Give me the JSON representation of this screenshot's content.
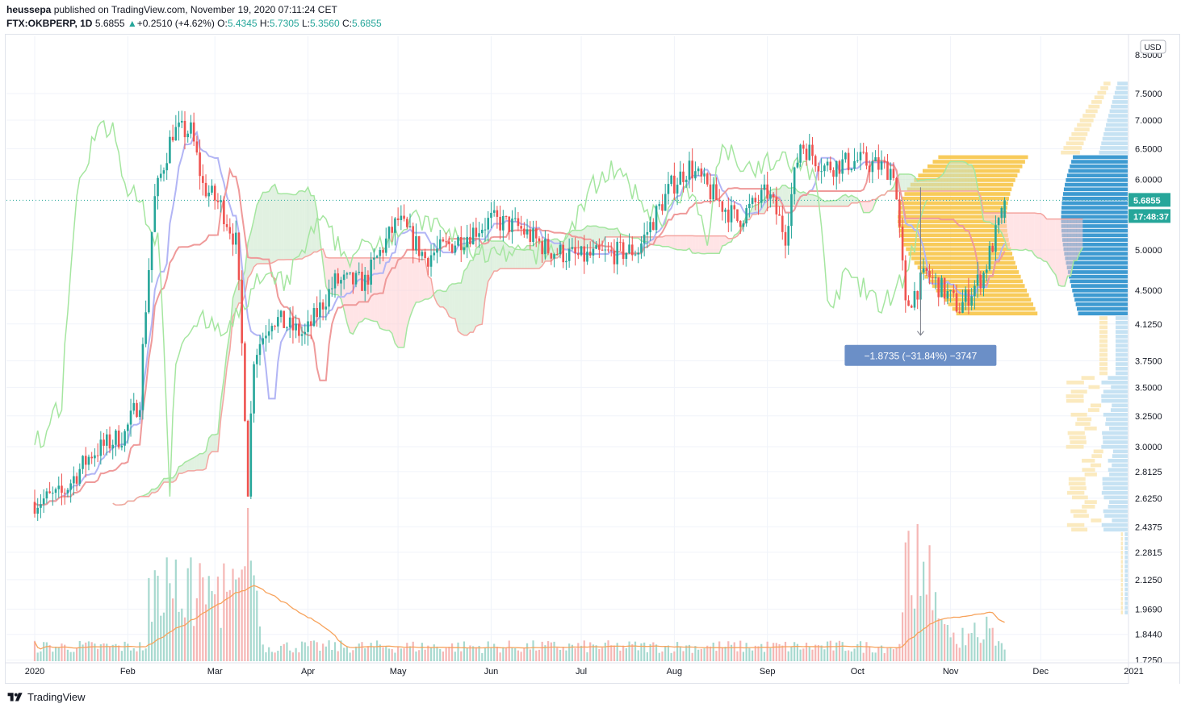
{
  "header": {
    "publisher": "heussepa",
    "published_text": " published on TradingView.com, November 19, 2020 07:11:24 CET",
    "symbol": "FTX:OKBPERP, 1D",
    "last": "5.6855",
    "change_arrow": "▲",
    "change": "+0.2510 (+4.62%)",
    "o_label": "O:",
    "o": "5.4345",
    "h_label": "H:",
    "h": "5.7305",
    "l_label": "L:",
    "l": "5.3560",
    "c_label": "C:",
    "c": "5.6855"
  },
  "footer": {
    "brand": "TradingView"
  },
  "price_axis": {
    "currency": "USD",
    "current_price": "5.6855",
    "countdown": "17:48:37",
    "top_label_partial": "8.5000"
  },
  "measure_label": "−1.8735 (−31.84%) −3747",
  "colors": {
    "up": "#26a69a",
    "down": "#ef5350",
    "tenkan": "#b2b5f5",
    "kijun": "#f4a5a0",
    "chikou": "#a5e6a0",
    "cloud_green": "#c8e6c9",
    "cloud_red": "#ffcdd2",
    "vol_ma": "#f7a35c",
    "vp_blue": "#3d9ad1",
    "vp_yellow": "#f7c548",
    "measure": "#6b8fc7"
  },
  "chart_data": {
    "type": "candlestick",
    "title": "FTX:OKBPERP, 1D",
    "ylabel": "USD",
    "y_scale": "log",
    "ylim": [
      1.72,
      8.7
    ],
    "x_ticks": [
      "2020",
      "Feb",
      "Mar",
      "Apr",
      "May",
      "Jun",
      "Jul",
      "Aug",
      "Sep",
      "Oct",
      "Nov",
      "Dec",
      "2021"
    ],
    "y_ticks": [
      7.5,
      7.0,
      6.5,
      6.0,
      5.0,
      4.5,
      4.125,
      3.75,
      3.5,
      3.25,
      3.0,
      2.8125,
      2.625,
      2.4375,
      2.2815,
      2.125,
      1.969,
      1.844,
      1.725
    ],
    "y_tick_labels": [
      "7.5000",
      "7.0000",
      "6.5000",
      "6.0000",
      "5.0000",
      "4.5000",
      "4.1250",
      "3.7500",
      "3.5000",
      "3.2500",
      "3.0000",
      "2.8125",
      "2.6250",
      "2.4375",
      "2.2815",
      "2.1250",
      "1.9690",
      "1.8440",
      "1.7250"
    ],
    "close_path": [
      [
        "2020-01-01",
        2.6
      ],
      [
        "2020-01-10",
        2.65
      ],
      [
        "2020-01-20",
        2.95
      ],
      [
        "2020-01-31",
        3.1
      ],
      [
        "2020-02-05",
        3.4
      ],
      [
        "2020-02-10",
        5.7
      ],
      [
        "2020-02-16",
        6.8
      ],
      [
        "2020-02-22",
        6.8
      ],
      [
        "2020-02-26",
        5.9
      ],
      [
        "2020-03-03",
        5.6
      ],
      [
        "2020-03-08",
        5.1
      ],
      [
        "2020-03-12",
        2.7
      ],
      [
        "2020-03-14",
        3.8
      ],
      [
        "2020-03-20",
        4.2
      ],
      [
        "2020-03-31",
        4.0
      ],
      [
        "2020-04-10",
        4.6
      ],
      [
        "2020-04-20",
        4.6
      ],
      [
        "2020-05-01",
        5.4
      ],
      [
        "2020-05-10",
        4.9
      ],
      [
        "2020-05-20",
        5.1
      ],
      [
        "2020-06-01",
        5.4
      ],
      [
        "2020-06-10",
        5.3
      ],
      [
        "2020-06-20",
        5.0
      ],
      [
        "2020-07-01",
        4.9
      ],
      [
        "2020-07-20",
        5.0
      ],
      [
        "2020-07-31",
        5.9
      ],
      [
        "2020-08-06",
        6.2
      ],
      [
        "2020-08-15",
        5.7
      ],
      [
        "2020-08-22",
        5.4
      ],
      [
        "2020-09-01",
        5.8
      ],
      [
        "2020-09-07",
        5.2
      ],
      [
        "2020-09-12",
        6.6
      ],
      [
        "2020-09-20",
        6.2
      ],
      [
        "2020-10-01",
        6.3
      ],
      [
        "2020-10-13",
        6.15
      ],
      [
        "2020-10-17",
        4.3
      ],
      [
        "2020-10-24",
        4.7
      ],
      [
        "2020-11-04",
        4.3
      ],
      [
        "2020-11-12",
        4.7
      ],
      [
        "2020-11-18",
        5.45
      ],
      [
        "2020-11-19",
        5.6855
      ]
    ],
    "last_ohlc": {
      "o": 5.4345,
      "h": 5.7305,
      "l": 5.356,
      "c": 5.6855
    },
    "measurement": {
      "from": 5.88,
      "to": 4.0065,
      "change": -1.8735,
      "change_pct": -31.84,
      "ticks": -3747
    },
    "volume_peaks": [
      "2020-02",
      "2020-03-12",
      "2020-10-17"
    ],
    "grid": true,
    "legend": "top-left"
  }
}
